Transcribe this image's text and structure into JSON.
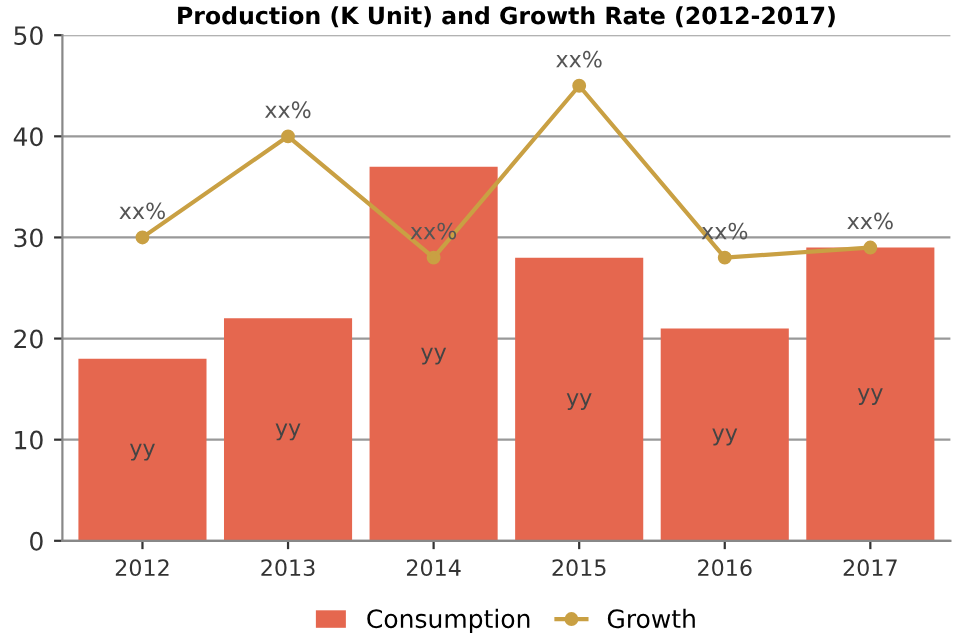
{
  "chart_data": {
    "type": "bar",
    "title": "Production (K Unit) and Growth Rate (2012-2017)",
    "categories": [
      "2012",
      "2013",
      "2014",
      "2015",
      "2016",
      "2017"
    ],
    "series": [
      {
        "name": "Consumption",
        "color": "#e5674f",
        "values": [
          18,
          22,
          37,
          28,
          21,
          29
        ],
        "value_labels": [
          "yy",
          "yy",
          "yy",
          "yy",
          "yy",
          "yy"
        ]
      },
      {
        "name": "Growth",
        "type": "line",
        "color": "#c9a043",
        "values": [
          30,
          40,
          28,
          45,
          28,
          29
        ],
        "value_labels": [
          "xx%",
          "xx%",
          "xx%",
          "xx%",
          "xx%",
          "xx%"
        ],
        "marker": "circle"
      }
    ],
    "ylim": [
      0,
      50
    ],
    "yticks": [
      0,
      10,
      20,
      30,
      40,
      50
    ],
    "grid": "y",
    "legend": "bottom"
  }
}
